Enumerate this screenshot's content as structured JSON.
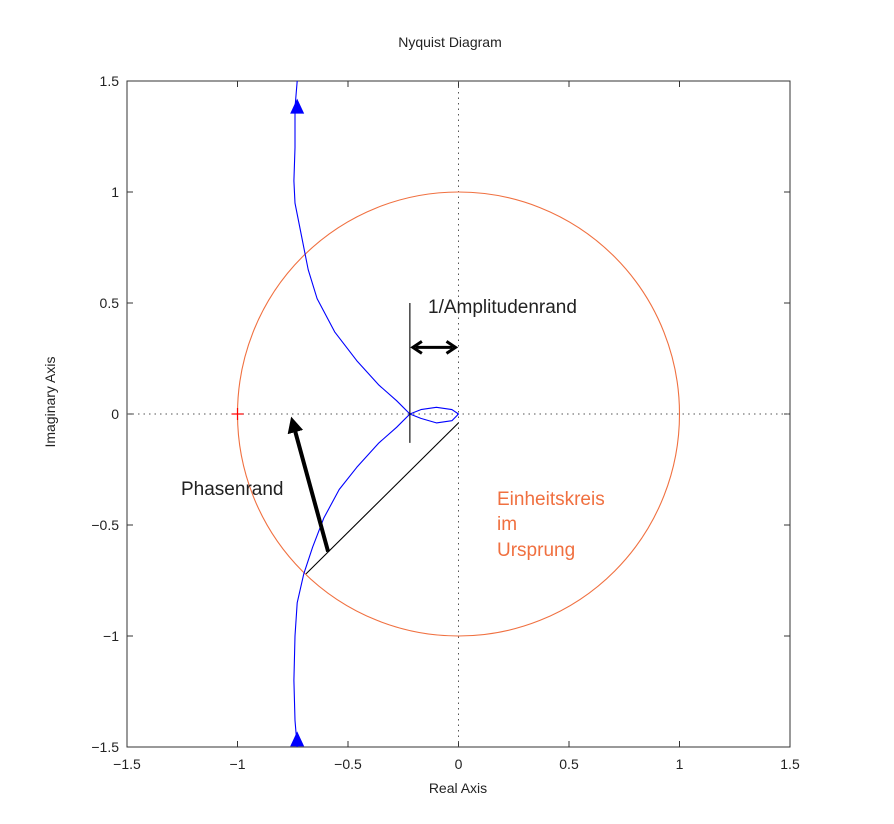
{
  "chart_data": {
    "type": "line",
    "title": "Nyquist Diagram",
    "xlabel": "Real Axis",
    "ylabel": "Imaginary Axis",
    "xlim": [
      -1.5,
      1.5
    ],
    "ylim": [
      -1.5,
      1.5
    ],
    "xticks": [
      -1.5,
      -1,
      -0.5,
      0,
      0.5,
      1,
      1.5
    ],
    "yticks": [
      -1.5,
      -1,
      -0.5,
      0,
      0.5,
      1,
      1.5
    ],
    "xtick_labels": [
      "−1.5",
      "−1",
      "−0.5",
      "0",
      "0.5",
      "1",
      "1.5"
    ],
    "ytick_labels": [
      "−1.5",
      "−1",
      "−0.5",
      "0",
      "0.5",
      "1",
      "1.5"
    ],
    "grid": false,
    "colors": {
      "nyquist": "#0000ff",
      "unit_circle": "#f07040",
      "critical_point": "#ff0000",
      "annotation": "#000000",
      "axis": "#222222"
    },
    "series": [
      {
        "points": [
          [
            -0.73,
            1.5
          ],
          [
            -0.74,
            1.38
          ],
          [
            -0.74,
            1.2
          ],
          [
            -0.745,
            1.05
          ],
          [
            -0.74,
            0.95
          ],
          [
            -0.71,
            0.8
          ],
          [
            -0.68,
            0.65
          ],
          [
            -0.64,
            0.52
          ],
          [
            -0.56,
            0.37
          ],
          [
            -0.46,
            0.24
          ],
          [
            -0.36,
            0.13
          ],
          [
            -0.28,
            0.06
          ],
          [
            -0.22,
            0.0
          ],
          [
            -0.17,
            0.02
          ],
          [
            -0.1,
            0.03
          ],
          [
            -0.03,
            0.02
          ],
          [
            0.0,
            0.0
          ],
          [
            -0.03,
            -0.03
          ],
          [
            -0.1,
            -0.04
          ],
          [
            -0.17,
            -0.02
          ],
          [
            -0.22,
            0.0
          ],
          [
            -0.28,
            -0.06
          ],
          [
            -0.36,
            -0.13
          ],
          [
            -0.46,
            -0.24
          ],
          [
            -0.54,
            -0.34
          ],
          [
            -0.61,
            -0.47
          ],
          [
            -0.66,
            -0.6
          ],
          [
            -0.7,
            -0.72
          ],
          [
            -0.73,
            -0.85
          ],
          [
            -0.74,
            -1.0
          ],
          [
            -0.745,
            -1.2
          ],
          [
            -0.74,
            -1.38
          ],
          [
            -0.73,
            -1.5
          ]
        ]
      }
    ],
    "direction_arrows": [
      {
        "x": -0.73,
        "y": 1.38,
        "pointing": "up"
      },
      {
        "x": -0.73,
        "y": -1.47,
        "pointing": "up"
      }
    ],
    "unit_circle": {
      "center": [
        0,
        0
      ],
      "radius": 1.0
    },
    "critical_point": {
      "x": -1,
      "y": 0
    },
    "annotations": {
      "amplitude_label": "1/Amplitudenrand",
      "phase_label": "Phasenrand",
      "circle_label": [
        "Einheitskreis",
        "im",
        "Ursprung"
      ],
      "gain_margin_marker": {
        "x": -0.22,
        "y_from": -0.13,
        "y_to": 0.5
      },
      "gain_margin_arrow": {
        "from_x": -0.22,
        "to_x": 0.0,
        "y": 0.3
      },
      "phase_margin_line": {
        "from": [
          0.0,
          -0.04
        ],
        "to": [
          -0.69,
          -0.72
        ]
      },
      "phase_margin_arrow": {
        "from": [
          -0.59,
          -0.62
        ],
        "to": [
          -0.75,
          -0.02
        ]
      }
    }
  }
}
